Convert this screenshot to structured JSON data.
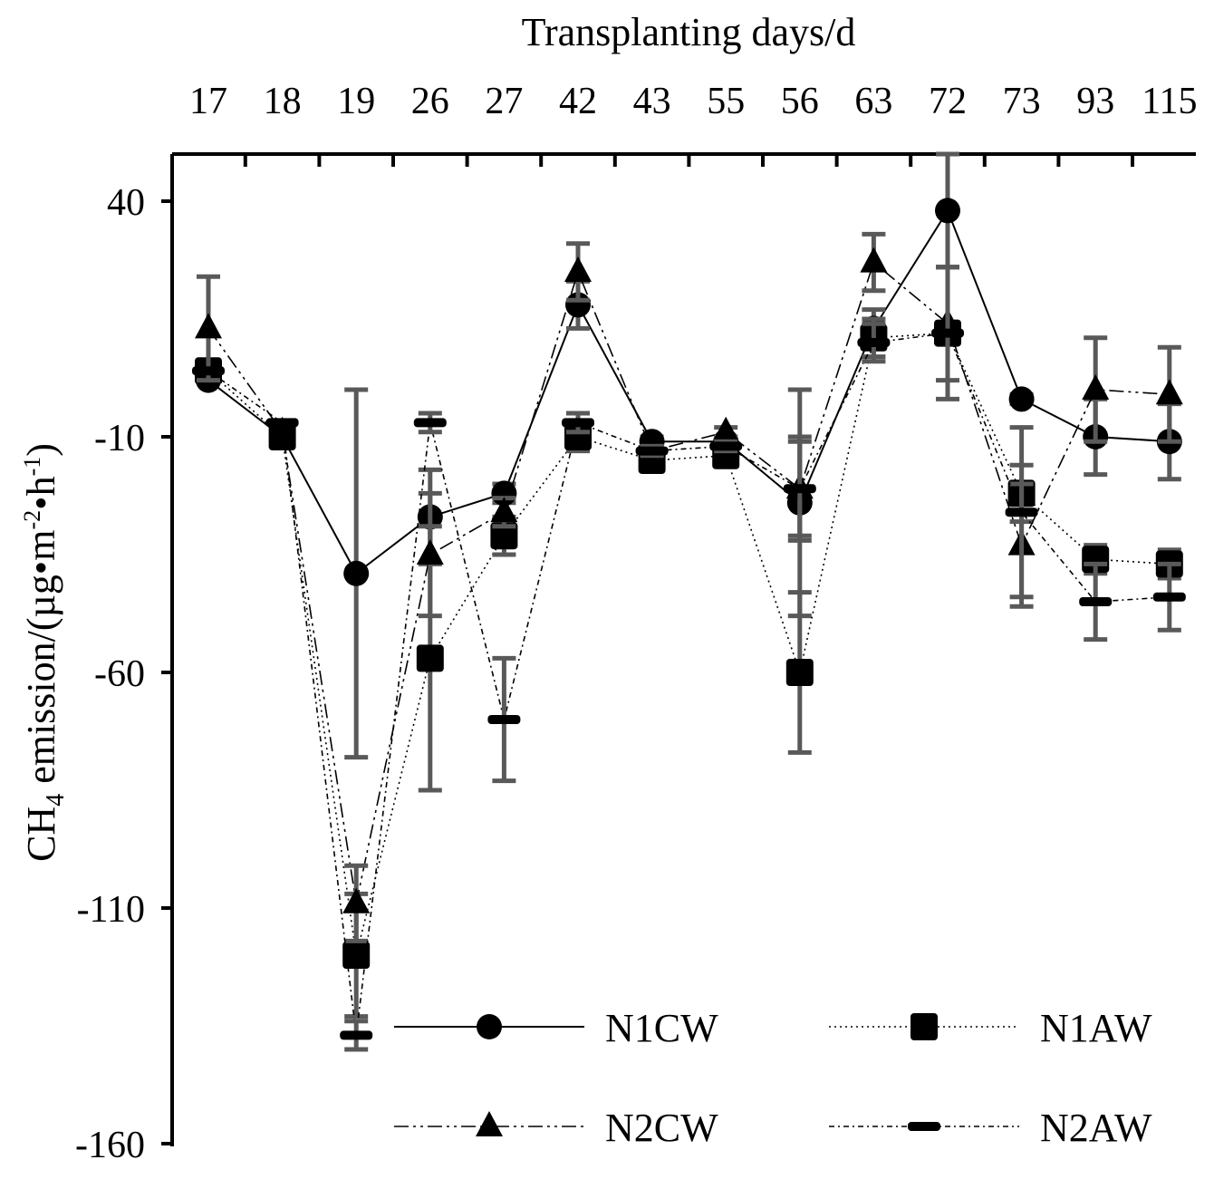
{
  "chart_data": {
    "type": "line",
    "title": "",
    "xlabel": "Transplanting days/d",
    "ylabel_main": "CH",
    "ylabel_sub": "4",
    "ylabel_rest_a": " emission/(µg•m",
    "ylabel_sup1": "-2",
    "ylabel_rest_b": "•h",
    "ylabel_sup2": "-1",
    "ylabel_end": ")",
    "categories": [
      "17",
      "18",
      "19",
      "26",
      "27",
      "42",
      "43",
      "55",
      "56",
      "63",
      "72",
      "73",
      "93",
      "115"
    ],
    "ylim": [
      -160,
      50
    ],
    "yticks": [
      40,
      -10,
      -60,
      -110,
      -160
    ],
    "series": [
      {
        "name": "N1CW",
        "marker": "circle",
        "dash": "solid",
        "values": [
          2,
          -10,
          -39,
          -27,
          -22,
          18,
          -11,
          -11,
          -24,
          13,
          38,
          -2,
          -10,
          -11
        ],
        "errors": [
          0,
          0,
          39,
          10,
          2,
          5,
          1,
          1,
          24,
          4,
          12,
          1,
          8,
          8
        ]
      },
      {
        "name": "N1AW",
        "marker": "square",
        "dash": "dotted",
        "values": [
          4,
          -10,
          -120,
          -57,
          -31,
          -10,
          -15,
          -14,
          -60,
          11,
          12,
          -22,
          -36,
          -37
        ],
        "errors": [
          0,
          0,
          13,
          28,
          4,
          3,
          1,
          2,
          17,
          4,
          2,
          6,
          3,
          3
        ]
      },
      {
        "name": "N2CW",
        "marker": "triangle",
        "dash": "dashdotdot",
        "values": [
          13,
          -9,
          -109,
          -35,
          -26,
          25,
          -13,
          -9,
          -21,
          27,
          14,
          -33,
          0,
          -1
        ],
        "errors": [
          11,
          0,
          8,
          13,
          3,
          6,
          1,
          1,
          10,
          6,
          12,
          13,
          11,
          10
        ]
      },
      {
        "name": "N2AW",
        "marker": "dash",
        "dash": "dashdot",
        "values": [
          4,
          -7,
          -137,
          -7,
          -70,
          -7,
          -13,
          -12,
          -21,
          10,
          12,
          -26,
          -45,
          -44
        ],
        "errors": [
          0,
          0,
          3,
          2,
          13,
          2,
          1,
          1,
          11,
          4,
          14,
          18,
          8,
          7
        ]
      }
    ],
    "legend": {
      "position": "bottom-right",
      "labels": [
        "N1CW",
        "N1AW",
        "N2CW",
        "N2AW"
      ]
    }
  }
}
